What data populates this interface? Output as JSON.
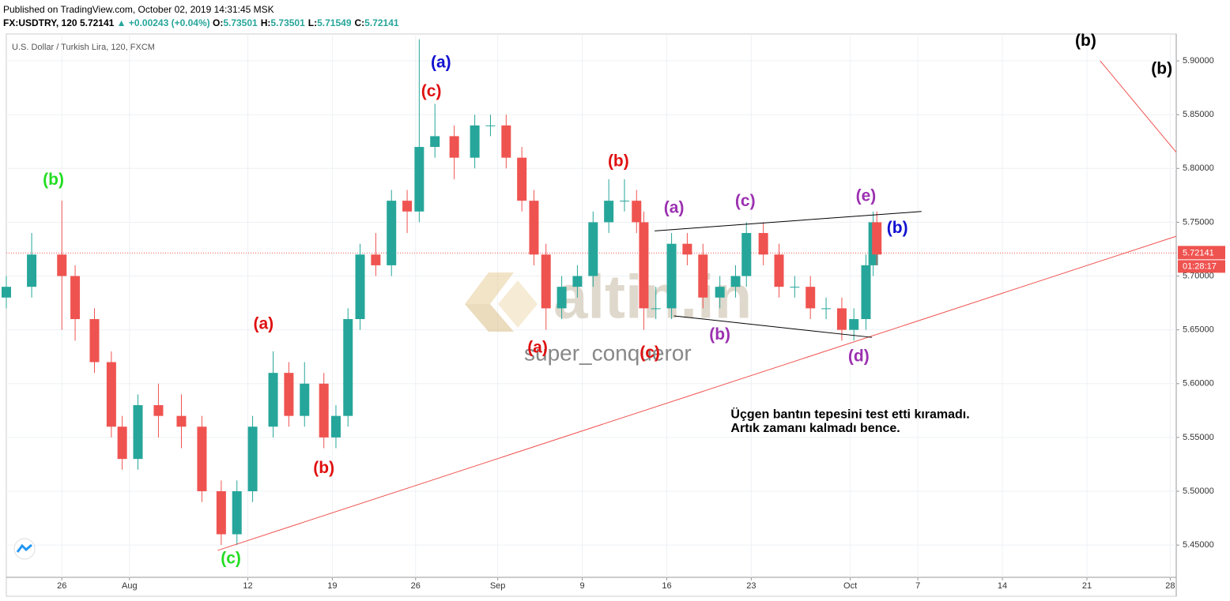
{
  "header": {
    "published": "Published on TradingView.com, October 02, 2019 14:31:45 MSK",
    "symbol": "FX:USDTRY, 120",
    "last": "5.72141",
    "change": "▲ +0.00243 (+0.04%)",
    "ohlc": [
      {
        "label": "O:",
        "value": "5.73501"
      },
      {
        "label": "H:",
        "value": "5.73501"
      },
      {
        "label": "L:",
        "value": "5.71549"
      },
      {
        "label": "C:",
        "value": "5.72141"
      }
    ]
  },
  "chart_data": {
    "type": "candlestick",
    "legend": "U.S. Dollar / Turkish Lira, 120, FXCM",
    "watermark": "altin.in",
    "author": "super_conqueror",
    "up_color": "#26a69a",
    "down_color": "#ef5350",
    "x": [
      -4.6,
      -2.5,
      0,
      1.1,
      2.7,
      4.1,
      5.0,
      6.3,
      8.0,
      9.9,
      11.6,
      13.2,
      14.5,
      15.8,
      17.5,
      18.8,
      20.1,
      21.7,
      22.7,
      23.7,
      24.7,
      26.0,
      27.3,
      28.6,
      29.6,
      30.9,
      32.5,
      34.2,
      35.5,
      36.8,
      38.1,
      39.1,
      40.1,
      41.4,
      42.7,
      44.0,
      45.3,
      46.6,
      47.6,
      48.2,
      49.2,
      50.5,
      51.8,
      53.1,
      54.5,
      55.8,
      56.7,
      58.1,
      59.4,
      60.7,
      62.0,
      63.3,
      64.6,
      65.6,
      66.6,
      67.2,
      67.5
    ],
    "open": [
      5.68,
      5.69,
      5.72,
      5.7,
      5.66,
      5.62,
      5.56,
      5.53,
      5.58,
      5.57,
      5.56,
      5.5,
      5.46,
      5.5,
      5.56,
      5.61,
      5.57,
      5.6,
      5.55,
      5.57,
      5.66,
      5.72,
      5.71,
      5.77,
      5.76,
      5.82,
      5.83,
      5.81,
      5.84,
      5.84,
      5.81,
      5.77,
      5.72,
      5.67,
      5.69,
      5.7,
      5.75,
      5.77,
      5.77,
      5.75,
      5.67,
      5.67,
      5.73,
      5.72,
      5.68,
      5.69,
      5.7,
      5.74,
      5.72,
      5.69,
      5.69,
      5.67,
      5.67,
      5.65,
      5.66,
      5.71,
      5.75
    ],
    "high": [
      5.7,
      5.74,
      5.77,
      5.71,
      5.67,
      5.63,
      5.57,
      5.59,
      5.6,
      5.59,
      5.57,
      5.51,
      5.51,
      5.57,
      5.63,
      5.62,
      5.62,
      5.61,
      5.58,
      5.67,
      5.73,
      5.74,
      5.78,
      5.78,
      5.92,
      5.86,
      5.84,
      5.85,
      5.85,
      5.85,
      5.82,
      5.78,
      5.73,
      5.7,
      5.71,
      5.76,
      5.79,
      5.79,
      5.78,
      5.76,
      5.69,
      5.74,
      5.74,
      5.73,
      5.7,
      5.71,
      5.75,
      5.75,
      5.73,
      5.7,
      5.7,
      5.68,
      5.68,
      5.67,
      5.72,
      5.76,
      5.76
    ],
    "low": [
      5.67,
      5.68,
      5.65,
      5.64,
      5.61,
      5.55,
      5.52,
      5.52,
      5.55,
      5.54,
      5.49,
      5.45,
      5.45,
      5.49,
      5.55,
      5.56,
      5.56,
      5.54,
      5.54,
      5.56,
      5.65,
      5.7,
      5.7,
      5.74,
      5.75,
      5.81,
      5.79,
      5.8,
      5.83,
      5.8,
      5.76,
      5.71,
      5.65,
      5.66,
      5.68,
      5.69,
      5.74,
      5.76,
      5.74,
      5.65,
      5.66,
      5.66,
      5.71,
      5.67,
      5.67,
      5.68,
      5.69,
      5.71,
      5.68,
      5.68,
      5.66,
      5.66,
      5.64,
      5.64,
      5.65,
      5.7,
      5.71
    ],
    "close": [
      5.69,
      5.72,
      5.7,
      5.66,
      5.62,
      5.56,
      5.53,
      5.58,
      5.57,
      5.56,
      5.5,
      5.46,
      5.5,
      5.56,
      5.61,
      5.57,
      5.6,
      5.55,
      5.57,
      5.66,
      5.72,
      5.71,
      5.77,
      5.76,
      5.82,
      5.83,
      5.81,
      5.84,
      5.84,
      5.81,
      5.77,
      5.72,
      5.67,
      5.69,
      5.7,
      5.75,
      5.77,
      5.77,
      5.75,
      5.67,
      5.67,
      5.73,
      5.72,
      5.68,
      5.69,
      5.7,
      5.74,
      5.72,
      5.69,
      5.69,
      5.67,
      5.67,
      5.65,
      5.66,
      5.71,
      5.75,
      5.72
    ],
    "xlim": [
      -4.6,
      92.3
    ],
    "ylim": [
      5.42,
      5.925
    ],
    "xticks": [
      {
        "value": 0,
        "label": "26"
      },
      {
        "value": 5.6,
        "label": "Aug"
      },
      {
        "value": 15.4,
        "label": "12"
      },
      {
        "value": 22.4,
        "label": "19"
      },
      {
        "value": 29.3,
        "label": "26"
      },
      {
        "value": 36.1,
        "label": "Sep"
      },
      {
        "value": 43.1,
        "label": "9"
      },
      {
        "value": 50.1,
        "label": "16"
      },
      {
        "value": 57.1,
        "label": "23"
      },
      {
        "value": 65.3,
        "label": "Oct"
      },
      {
        "value": 70.9,
        "label": "7"
      },
      {
        "value": 77.9,
        "label": "14"
      },
      {
        "value": 84.9,
        "label": "21"
      },
      {
        "value": 91.8,
        "label": "28"
      }
    ],
    "yticks": [
      {
        "value": 5.45,
        "label": "5.45000"
      },
      {
        "value": 5.5,
        "label": "5.50000"
      },
      {
        "value": 5.55,
        "label": "5.55000"
      },
      {
        "value": 5.6,
        "label": "5.60000"
      },
      {
        "value": 5.65,
        "label": "5.65000"
      },
      {
        "value": 5.7,
        "label": "5.70000"
      },
      {
        "value": 5.75,
        "label": "5.75000"
      },
      {
        "value": 5.8,
        "label": "5.80000"
      },
      {
        "value": 5.85,
        "label": "5.85000"
      },
      {
        "value": 5.9,
        "label": "5.90000"
      }
    ],
    "grid": true,
    "last_price": {
      "value": 5.72141,
      "label": "5.72141",
      "countdown": "01:28:17",
      "color": "#ef5350"
    },
    "trendlines": [
      {
        "x": [
          12.9,
          92.3
        ],
        "y": [
          5.445,
          5.737
        ],
        "color": "#ef5350"
      },
      {
        "x": [
          86.0,
          92.3
        ],
        "y": [
          5.9,
          5.815
        ],
        "color": "#ef5350"
      },
      {
        "x": [
          49.1,
          71.2
        ],
        "y": [
          5.742,
          5.76
        ],
        "color": "#000000"
      },
      {
        "x": [
          50.7,
          67.1
        ],
        "y": [
          5.663,
          5.643
        ],
        "color": "#000000"
      }
    ],
    "annotations": [
      {
        "text": "(b)",
        "x": -0.7,
        "y": 5.789,
        "color": "#22dd22"
      },
      {
        "text": "(c)",
        "x": 14.0,
        "y": 5.437,
        "color": "#22dd22"
      },
      {
        "text": "(a)",
        "x": 16.7,
        "y": 5.655,
        "color": "#e01010"
      },
      {
        "text": "(b)",
        "x": 21.7,
        "y": 5.521,
        "color": "#e01010"
      },
      {
        "text": "(c)",
        "x": 30.6,
        "y": 5.871,
        "color": "#e01010"
      },
      {
        "text": "(a)",
        "x": 31.4,
        "y": 5.898,
        "color": "#1010d0"
      },
      {
        "text": "(b)",
        "x": 46.1,
        "y": 5.806,
        "color": "#e01010"
      },
      {
        "text": "(a)",
        "x": 39.4,
        "y": 5.633,
        "color": "#e01010"
      },
      {
        "text": "(c)",
        "x": 48.7,
        "y": 5.628,
        "color": "#e01010"
      },
      {
        "text": "(a)",
        "x": 50.7,
        "y": 5.763,
        "color": "#9b30b0"
      },
      {
        "text": "(c)",
        "x": 56.6,
        "y": 5.769,
        "color": "#9b30b0"
      },
      {
        "text": "(e)",
        "x": 66.6,
        "y": 5.774,
        "color": "#9b30b0"
      },
      {
        "text": "(b)",
        "x": 69.2,
        "y": 5.744,
        "color": "#1010d0"
      },
      {
        "text": "(b)",
        "x": 54.5,
        "y": 5.645,
        "color": "#9b30b0"
      },
      {
        "text": "(d)",
        "x": 66.0,
        "y": 5.625,
        "color": "#9b30b0"
      },
      {
        "text": "(b)",
        "x": 84.8,
        "y": 5.918,
        "color": "#000000"
      },
      {
        "text": "(b)",
        "x": 91.1,
        "y": 5.892,
        "color": "#000000"
      }
    ],
    "notes": [
      {
        "text": "Üçgen bantın tepesini test etti kıramadı.",
        "x": 55.4,
        "y": 5.571
      },
      {
        "text": "Artık zamanı kalmadı bence.",
        "x": 55.4,
        "y": 5.558
      }
    ]
  }
}
